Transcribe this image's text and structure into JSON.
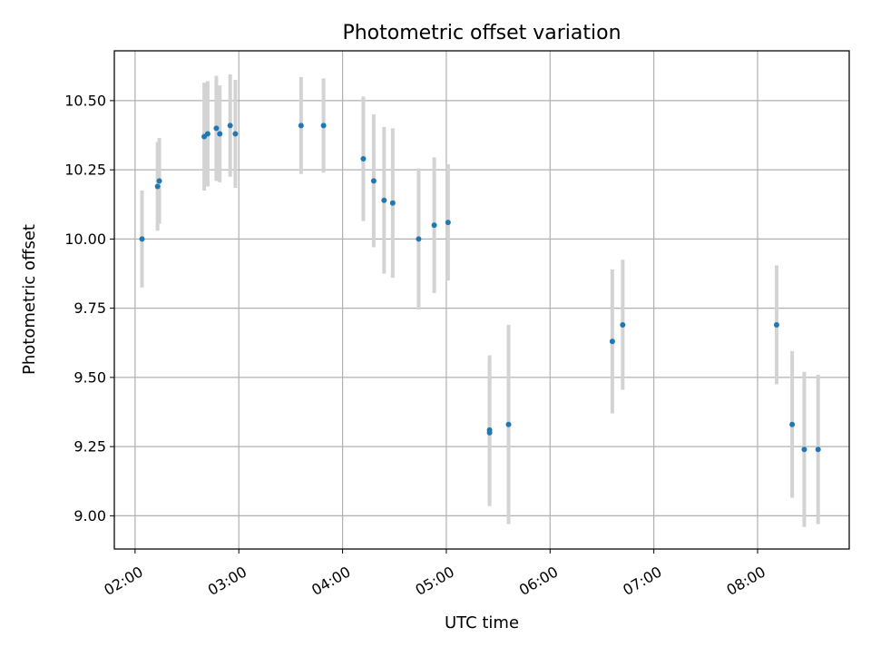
{
  "chart_data": {
    "type": "scatter",
    "title": "Photometric offset variation",
    "xlabel": "UTC time",
    "ylabel": "Photometric offset",
    "xlim": [
      "01:48",
      "08:53"
    ],
    "ylim": [
      8.88,
      10.68
    ],
    "grid": true,
    "x_ticks": [
      "02:00",
      "03:00",
      "04:00",
      "05:00",
      "06:00",
      "07:00",
      "08:00"
    ],
    "y_ticks": [
      "9.00",
      "9.25",
      "9.50",
      "9.75",
      "10.00",
      "10.25",
      "10.50"
    ],
    "colors": {
      "points": "#1f77b4",
      "errorbars": "#d3d3d3",
      "grid": "#b0b0b0"
    },
    "points": [
      {
        "x": "02:04",
        "y": 10.0,
        "err": 0.175
      },
      {
        "x": "02:13",
        "y": 10.19,
        "err": 0.16
      },
      {
        "x": "02:14",
        "y": 10.21,
        "err": 0.155
      },
      {
        "x": "02:40",
        "y": 10.37,
        "err": 0.195
      },
      {
        "x": "02:42",
        "y": 10.38,
        "err": 0.19
      },
      {
        "x": "02:47",
        "y": 10.4,
        "err": 0.19
      },
      {
        "x": "02:49",
        "y": 10.38,
        "err": 0.175
      },
      {
        "x": "02:55",
        "y": 10.41,
        "err": 0.185
      },
      {
        "x": "02:58",
        "y": 10.38,
        "err": 0.195
      },
      {
        "x": "03:36",
        "y": 10.41,
        "err": 0.175
      },
      {
        "x": "03:49",
        "y": 10.41,
        "err": 0.17
      },
      {
        "x": "04:12",
        "y": 10.29,
        "err": 0.225
      },
      {
        "x": "04:18",
        "y": 10.21,
        "err": 0.24
      },
      {
        "x": "04:24",
        "y": 10.14,
        "err": 0.265
      },
      {
        "x": "04:29",
        "y": 10.13,
        "err": 0.27
      },
      {
        "x": "04:44",
        "y": 10.0,
        "err": 0.255
      },
      {
        "x": "04:53",
        "y": 10.05,
        "err": 0.245
      },
      {
        "x": "05:01",
        "y": 10.06,
        "err": 0.21
      },
      {
        "x": "05:25",
        "y": 9.31,
        "err": 0.27
      },
      {
        "x": "05:25",
        "y": 9.3,
        "err": 0.265
      },
      {
        "x": "05:36",
        "y": 9.33,
        "err": 0.36
      },
      {
        "x": "06:36",
        "y": 9.63,
        "err": 0.26
      },
      {
        "x": "06:42",
        "y": 9.69,
        "err": 0.235
      },
      {
        "x": "08:11",
        "y": 9.69,
        "err": 0.215
      },
      {
        "x": "08:20",
        "y": 9.33,
        "err": 0.265
      },
      {
        "x": "08:27",
        "y": 9.24,
        "err": 0.28
      },
      {
        "x": "08:35",
        "y": 9.24,
        "err": 0.27
      }
    ]
  }
}
